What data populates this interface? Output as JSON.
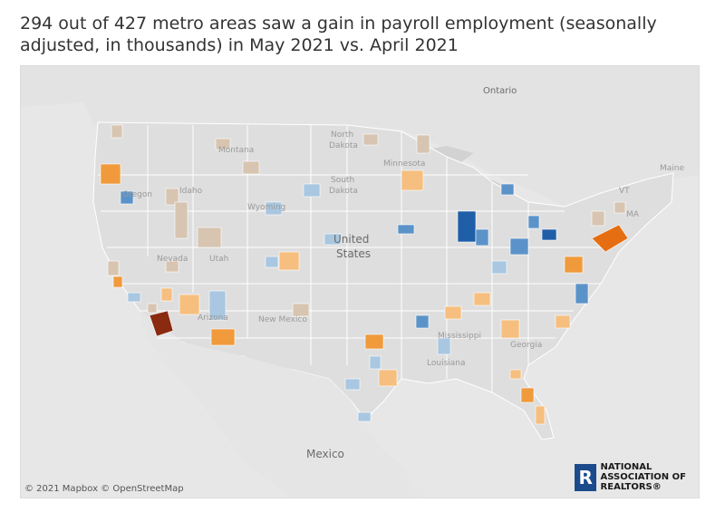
{
  "title": "294 out of 427 metro areas saw a gain in payroll employment (seasonally adjusted, in thousands) in May 2021 vs. April 2021",
  "attribution": "© 2021 Mapbox  © OpenStreetMap",
  "logo": {
    "mark": "R",
    "lines": [
      "NATIONAL",
      "ASSOCIATION OF",
      "REALTORS®"
    ]
  },
  "labels": {
    "countries": [
      "Ontario",
      "United",
      "States",
      "Mexico"
    ],
    "states": [
      "Montana",
      "North",
      "Dakota",
      "South",
      "Dakota",
      "Minnesota",
      "Wyoming",
      "Idaho",
      "Oregon",
      "Nevada",
      "Utah",
      "Arizona",
      "New Mexico",
      "Mississippi",
      "Louisiana",
      "Georgia",
      "Maine",
      "VT",
      "MA"
    ]
  },
  "colors": {
    "map_background": "#e7e7e7",
    "us_land": "#dedede",
    "lakes": "#d2d2d2",
    "state_border": "#ffffff",
    "decline_strong": "#1f5fa8",
    "decline_medium": "#5b93c9",
    "decline_light": "#a9c7e0",
    "gain_neutral": "#d7c5b1",
    "gain_light": "#f6bf7f",
    "gain_medium": "#f09a3c",
    "gain_strong": "#e66e12",
    "gain_extreme": "#8a2a10"
  }
}
